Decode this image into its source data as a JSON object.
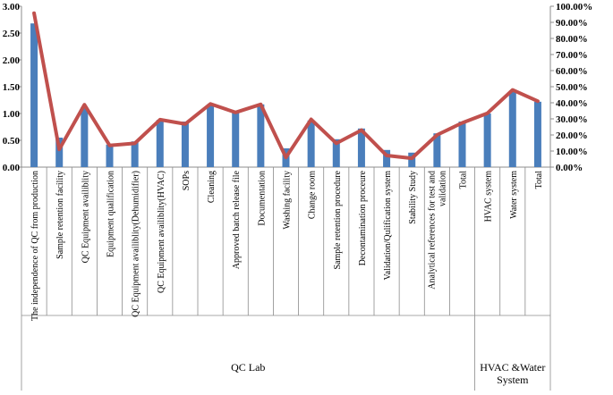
{
  "chart_data": {
    "type": "bar",
    "colors": {
      "bar": "#4a7ebb",
      "line": "#c0504d",
      "grid_axis": "#8c8c8c"
    },
    "grid": false,
    "left_axis": {
      "ylim": [
        0,
        3
      ],
      "ticks": [
        "0.00",
        "0.50",
        "1.00",
        "1.50",
        "2.00",
        "2.50",
        "3.00"
      ]
    },
    "right_axis": {
      "ylim": [
        0,
        1
      ],
      "ticks": [
        "0.00%",
        "10.00%",
        "20.00%",
        "30.00%",
        "40.00%",
        "50.00%",
        "60.00%",
        "70.00%",
        "80.00%",
        "90.00%",
        "100.00%"
      ]
    },
    "groups": [
      {
        "label": "QC Lab",
        "count": 18
      },
      {
        "label": "HVAC &Water System",
        "count": 3
      }
    ],
    "categories": [
      "The independence of QC from production",
      "Sample retention facility",
      "QC Equipment availiblity",
      "Equipment qualification",
      "QC Equipment availiblity(Dehumidifier)",
      "QC Equipment availiblity(HVAC)",
      "SOPs",
      "Cleaning",
      "Approved batch release file",
      "Documentation",
      "Washing facility",
      "Change room",
      "Sample retention procedure",
      "Decontamination proceure",
      "Validation/Qulification system",
      "Stability Study",
      "Analytical references for test and validation",
      "Total",
      "HVAC system",
      "Water system",
      "Total"
    ],
    "series": [
      {
        "type": "bar",
        "axis": "left",
        "values": [
          2.68,
          0.55,
          1.12,
          0.42,
          0.48,
          0.88,
          0.85,
          1.17,
          1.05,
          1.17,
          0.35,
          0.87,
          0.52,
          0.72,
          0.32,
          0.27,
          0.63,
          0.85,
          1.0,
          1.42,
          1.22
        ]
      },
      {
        "type": "line",
        "axis": "right",
        "values": [
          0.957,
          0.11,
          0.388,
          0.135,
          0.148,
          0.295,
          0.268,
          0.393,
          0.34,
          0.39,
          0.06,
          0.297,
          0.148,
          0.23,
          0.072,
          0.055,
          0.2,
          0.275,
          0.335,
          0.48,
          0.41
        ]
      }
    ]
  }
}
